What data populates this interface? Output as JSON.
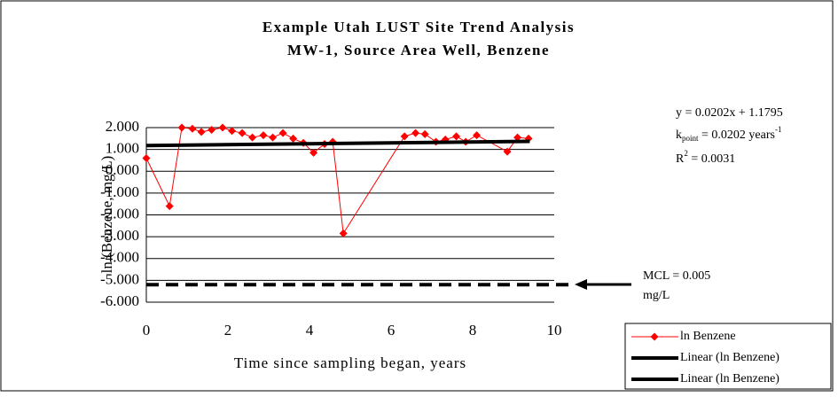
{
  "chart_data": {
    "type": "line",
    "title": "Example Utah LUST Site Trend Analysis",
    "subtitle": "MW-1, Source Area Well,  Benzene",
    "x_label": "Time since sampling began, years",
    "y_label": "ln (Benzene, mg/L)",
    "xlim": [
      0,
      10
    ],
    "xticks": [
      0,
      2,
      4,
      6,
      8,
      10
    ],
    "ylim": [
      -6,
      2
    ],
    "yticks": [
      {
        "value": 2,
        "label": "2.000"
      },
      {
        "value": 1,
        "label": "1.000"
      },
      {
        "value": 0,
        "label": "0.000"
      },
      {
        "value": -1,
        "label": "-1.000"
      },
      {
        "value": -2,
        "label": "-2.000"
      },
      {
        "value": -3,
        "label": "-3.000"
      },
      {
        "value": -4,
        "label": "-4.000"
      },
      {
        "value": -5,
        "label": "-5.000"
      },
      {
        "value": -6,
        "label": "-6.000"
      }
    ],
    "grid": true,
    "legend": "lower right",
    "series": [
      {
        "name": "ln Benzene",
        "color": "#ff0000",
        "x": [
          0,
          0.57,
          0.87,
          1.13,
          1.35,
          1.6,
          1.87,
          2.1,
          2.35,
          2.6,
          2.87,
          3.1,
          3.35,
          3.6,
          3.85,
          4.1,
          4.37,
          4.57,
          4.83,
          6.33,
          6.6,
          6.83,
          7.1,
          7.33,
          7.6,
          7.83,
          8.1,
          8.85,
          9.1,
          9.37
        ],
        "values": [
          0.6,
          -1.6,
          2.0,
          1.95,
          1.8,
          1.9,
          2.0,
          1.85,
          1.75,
          1.55,
          1.65,
          1.55,
          1.75,
          1.5,
          1.3,
          0.85,
          1.25,
          1.35,
          -2.85,
          1.6,
          1.75,
          1.7,
          1.35,
          1.45,
          1.6,
          1.35,
          1.65,
          0.9,
          1.55,
          1.5
        ]
      },
      {
        "name": "Linear (ln Benzene)",
        "color": "#000000",
        "x": [
          0,
          9.4
        ],
        "values": [
          1.18,
          1.37
        ]
      },
      {
        "name": "Linear (ln Benzene)",
        "color": "#000000",
        "dashed": true,
        "x": [
          0,
          10.5
        ],
        "values": [
          -5.2,
          -5.2
        ]
      }
    ],
    "annotations": {
      "equation": "y = 0.0202x + 1.1795",
      "k": {
        "base": "k",
        "sub": "point",
        "text": " = 0.0202 years",
        "sup": "-1"
      },
      "r2": {
        "base": "R",
        "sup": "2",
        "text": " = 0.0031"
      },
      "mcl": [
        "MCL = 0.005",
        "mg/L"
      ]
    }
  }
}
